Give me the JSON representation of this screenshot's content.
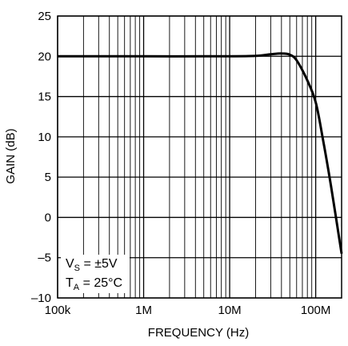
{
  "chart_data": {
    "type": "line",
    "xlabel": "FREQUENCY (Hz)",
    "ylabel": "GAIN (dB)",
    "x_scale": "log",
    "xlim": [
      100000,
      200000000
    ],
    "ylim": [
      -10,
      25
    ],
    "x_ticks": [
      {
        "value": 100000,
        "label": "100k"
      },
      {
        "value": 1000000,
        "label": "1M"
      },
      {
        "value": 10000000,
        "label": "10M"
      },
      {
        "value": 100000000,
        "label": "100M"
      }
    ],
    "y_ticks": [
      {
        "value": 25,
        "label": "25"
      },
      {
        "value": 20,
        "label": "20"
      },
      {
        "value": 15,
        "label": "15"
      },
      {
        "value": 10,
        "label": "10"
      },
      {
        "value": 5,
        "label": "5"
      },
      {
        "value": 0,
        "label": "0"
      },
      {
        "value": -5,
        "label": "–5"
      },
      {
        "value": -10,
        "label": "–10"
      }
    ],
    "grid": true,
    "annotation": {
      "line1": {
        "main": "V",
        "sub": "S",
        "rest": " = ±5V"
      },
      "line2": {
        "main": "T",
        "sub": "A",
        "rest": " = 25°C"
      }
    },
    "series": [
      {
        "x": [
          100000,
          1000000,
          10000000,
          20000000,
          30000000,
          40000000,
          50000000,
          60000000,
          80000000,
          100000000,
          120000000,
          150000000,
          200000000
        ],
        "y": [
          20,
          20,
          20,
          20.05,
          20.25,
          20.35,
          20.2,
          19.5,
          17.0,
          14.3,
          10.0,
          4.0,
          -4.5
        ]
      }
    ]
  }
}
